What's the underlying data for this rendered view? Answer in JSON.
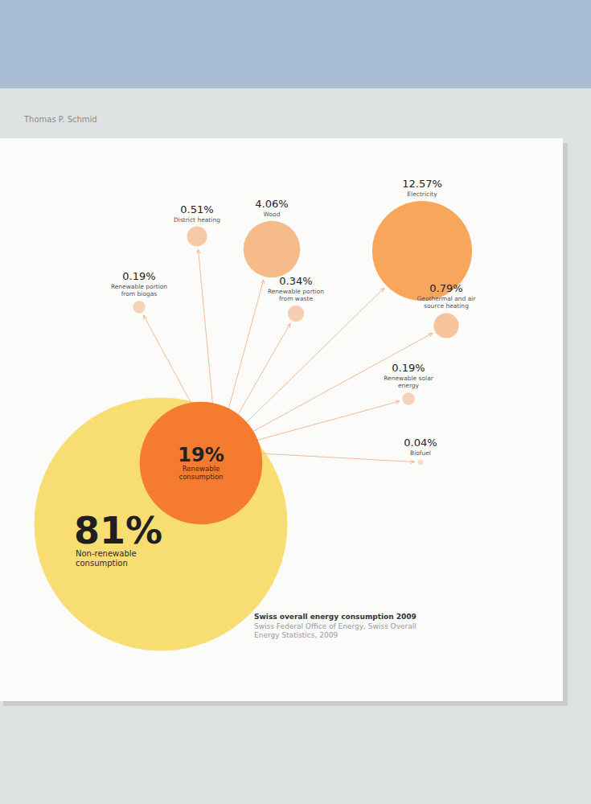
{
  "chart_data": {
    "type": "bubble",
    "title": "Swiss overall energy consumption 2009",
    "source": "Swiss Federal Office of Energy, Swiss Overall Energy Statistics, 2009",
    "author": "Thomas P. Schmid",
    "data_labels": true,
    "categories": [
      "Non-renewable consumption",
      "Renewable consumption"
    ],
    "values": [
      81,
      19
    ],
    "value_labels": [
      "81%",
      "19%"
    ],
    "colors": [
      "#f7dd72",
      "#f47b30"
    ],
    "breakdown": {
      "categories": [
        "Renewable portion from biogas",
        "District heating",
        "Wood",
        "Renewable portion from waste",
        "Electricity",
        "Geothermal and air source heating",
        "Renewable solar energy",
        "Biofuel"
      ],
      "values": [
        0.19,
        0.51,
        4.06,
        0.34,
        12.57,
        0.79,
        0.19,
        0.04
      ],
      "value_labels": [
        "0.19%",
        "0.51%",
        "4.06%",
        "0.34%",
        "12.57%",
        "0.79%",
        "0.19%",
        "0.04%"
      ],
      "colors": [
        "#f6d2b8",
        "#f6c9a6",
        "#f5bb8a",
        "#f6cdb0",
        "#f8a65c",
        "#f6c39d",
        "#f6d2b8",
        "#f6dcc8"
      ]
    }
  }
}
